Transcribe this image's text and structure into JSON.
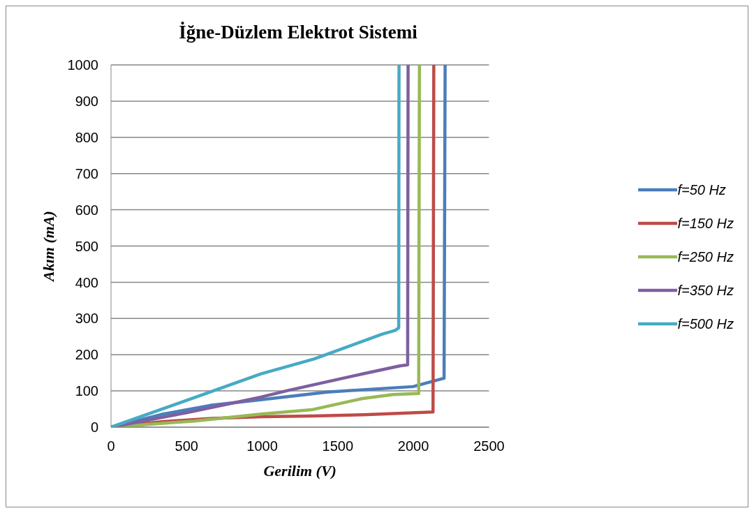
{
  "chart_data": {
    "type": "line",
    "title": "İğne-Düzlem Elektrot Sistemi",
    "xlabel": "Gerilim (V)",
    "ylabel": "Akım (mA)",
    "xlim": [
      0,
      2500
    ],
    "xticks": [
      0,
      500,
      1000,
      1500,
      2000,
      2500
    ],
    "ylim": [
      0,
      1000
    ],
    "yticks": [
      0,
      100,
      200,
      300,
      400,
      500,
      600,
      700,
      800,
      900,
      1000
    ],
    "grid": "y",
    "legend": "right",
    "marker": "none",
    "line_style": "solid",
    "series": [
      {
        "name": "f=50 Hz",
        "color": "#4a7ebb",
        "x": [
          0,
          333,
          656,
          1000,
          1430,
          1999,
          2203,
          2210
        ],
        "values": [
          0,
          35,
          60,
          76,
          97,
          112,
          135,
          1000
        ]
      },
      {
        "name": "f=150 Hz",
        "color": "#be4b48",
        "x": [
          0,
          333,
          667,
          1000,
          1333,
          1667,
          2130,
          2135
        ],
        "values": [
          0,
          15,
          24,
          29,
          31,
          34,
          42,
          1000
        ]
      },
      {
        "name": "f=250 Hz",
        "color": "#98b954",
        "x": [
          0,
          553,
          992,
          1327,
          1663,
          1866,
          2035,
          2040
        ],
        "values": [
          0,
          17,
          36,
          48,
          79,
          90,
          93,
          1000
        ]
      },
      {
        "name": "f=350 Hz",
        "color": "#7d60a0",
        "x": [
          0,
          500,
          992,
          1167,
          1663,
          1910,
          1962,
          1965
        ],
        "values": [
          0,
          40,
          83,
          101,
          147,
          169,
          172,
          1000
        ]
      },
      {
        "name": "f=500 Hz",
        "color": "#46aac5",
        "x": [
          0,
          500,
          992,
          1342,
          1795,
          1880,
          1903,
          1905
        ],
        "values": [
          0,
          74,
          147,
          188,
          257,
          267,
          274,
          1000
        ]
      }
    ]
  }
}
